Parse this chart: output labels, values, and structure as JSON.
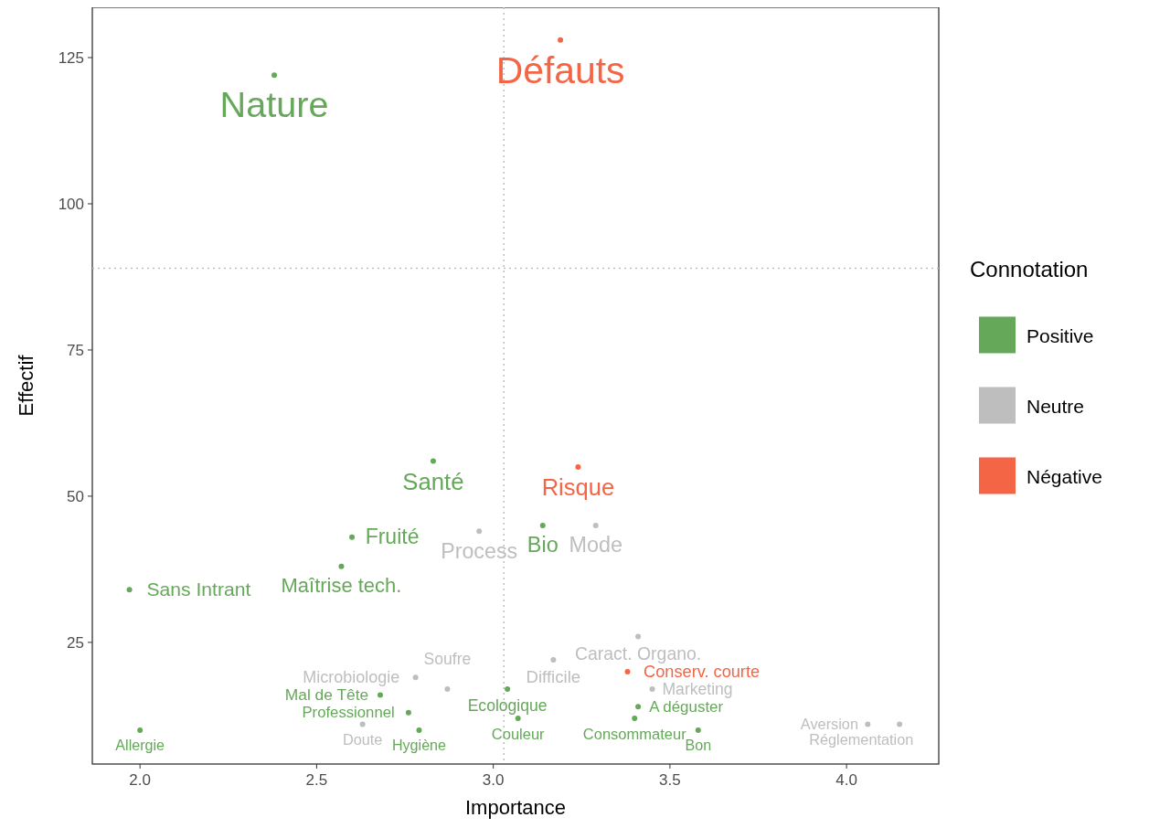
{
  "chart_data": {
    "type": "scatter",
    "xlabel": "Importance",
    "ylabel": "Effectif",
    "legend_title": "Connotation",
    "legend": "right",
    "grid": false,
    "marker": "circle",
    "xlim": [
      1.865,
      4.261
    ],
    "xticks": [
      {
        "value": 2,
        "label": "2.0"
      },
      {
        "value": 2.5,
        "label": "2.5"
      },
      {
        "value": 3,
        "label": "3.0"
      },
      {
        "value": 3.5,
        "label": "3.5"
      },
      {
        "value": 4,
        "label": "4.0"
      }
    ],
    "ylim": [
      4.2,
      133.6
    ],
    "yticks": [
      25,
      50,
      75,
      100,
      125
    ],
    "ref_lines": [
      {
        "axis": "x",
        "value": 3.03,
        "line_style": "dotted",
        "color": "#bebebe"
      },
      {
        "axis": "y",
        "value": 89,
        "line_style": "dotted",
        "color": "#bebebe"
      }
    ],
    "series": [
      {
        "name": "Positive",
        "color": "#66a85a",
        "x": [
          2.38,
          2.83,
          3.14,
          2.6,
          2.57,
          1.97,
          2.68,
          3.04,
          2.76,
          3.41,
          3.07,
          3.4,
          3.58,
          2.79,
          2.0
        ],
        "values": [
          122,
          56,
          45,
          43,
          38,
          34,
          16,
          17,
          13,
          14,
          12,
          12,
          10,
          10,
          10
        ]
      },
      {
        "name": "Neutre",
        "color": "#bebebe",
        "x": [
          3.29,
          2.96,
          3.41,
          3.17,
          2.78,
          2.87,
          3.45,
          2.63,
          4.15,
          4.06
        ],
        "values": [
          45,
          44,
          26,
          22,
          19,
          17,
          17,
          11,
          11,
          11
        ]
      },
      {
        "name": "Négative",
        "color": "#f46546",
        "x": [
          3.19,
          3.24,
          3.38
        ],
        "values": [
          128,
          55,
          20
        ]
      }
    ],
    "annotations": [
      {
        "text": "Nature",
        "x": 2.38,
        "y": 122
      },
      {
        "text": "Santé",
        "x": 2.83,
        "y": 56
      },
      {
        "text": "Bio",
        "x": 3.14,
        "y": 45
      },
      {
        "text": "Fruité",
        "x": 2.6,
        "y": 43
      },
      {
        "text": "Maîtrise tech.",
        "x": 2.57,
        "y": 38
      },
      {
        "text": "Sans Intrant",
        "x": 1.97,
        "y": 34
      },
      {
        "text": "Mal de Tête",
        "x": 2.68,
        "y": 16
      },
      {
        "text": "Ecologique",
        "x": 3.04,
        "y": 17
      },
      {
        "text": "Professionnel",
        "x": 2.76,
        "y": 13
      },
      {
        "text": "A déguster",
        "x": 3.41,
        "y": 14
      },
      {
        "text": "Couleur",
        "x": 3.07,
        "y": 12
      },
      {
        "text": "Consommateur",
        "x": 3.4,
        "y": 12
      },
      {
        "text": "Bon",
        "x": 3.58,
        "y": 10
      },
      {
        "text": "Hygiène",
        "x": 2.79,
        "y": 10
      },
      {
        "text": "Allergie",
        "x": 2.0,
        "y": 10
      },
      {
        "text": "Mode",
        "x": 3.29,
        "y": 45
      },
      {
        "text": "Process",
        "x": 2.96,
        "y": 44
      },
      {
        "text": "Caract. Organo.",
        "x": 3.41,
        "y": 26
      },
      {
        "text": "Difficile",
        "x": 3.17,
        "y": 22
      },
      {
        "text": "Microbiologie",
        "x": 2.78,
        "y": 19
      },
      {
        "text": "Soufre",
        "x": 2.87,
        "y": 17
      },
      {
        "text": "Marketing",
        "x": 3.45,
        "y": 17
      },
      {
        "text": "Doute",
        "x": 2.63,
        "y": 11
      },
      {
        "text": "Réglementation",
        "x": 4.15,
        "y": 11
      },
      {
        "text": "Aversion",
        "x": 4.06,
        "y": 11
      },
      {
        "text": "Défauts",
        "x": 3.19,
        "y": 128
      },
      {
        "text": "Risque",
        "x": 3.24,
        "y": 55
      },
      {
        "text": "Conserv. courte",
        "x": 3.38,
        "y": 20
      }
    ]
  }
}
